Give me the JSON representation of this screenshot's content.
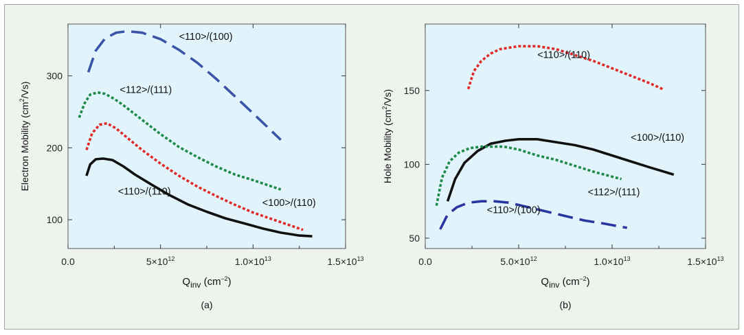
{
  "figure": {
    "background": "#eef3ee",
    "plot_background": "#e2f4fb"
  },
  "chart_data": [
    {
      "type": "line",
      "panel_label": "(a)",
      "xlabel": {
        "main": "Q",
        "sub": "inv",
        "unit_pre": " (cm",
        "unit_sup": "–2",
        "unit_post": ")"
      },
      "ylabel": {
        "main": "Electron Mobility (cm",
        "sup": "2",
        "post": "/Vs)"
      },
      "xlim": [
        0,
        15000000000000.0
      ],
      "ylim": [
        60,
        372
      ],
      "xticks": [
        {
          "value": 0,
          "label": "0.0"
        },
        {
          "value": 5000000000000.0,
          "label": "5×10",
          "exp": "12"
        },
        {
          "value": 10000000000000.0,
          "label": "1.0×10",
          "exp": "13"
        },
        {
          "value": 15000000000000.0,
          "label": "1.5×10",
          "exp": "13"
        }
      ],
      "yticks": [
        {
          "value": 100,
          "label": "100"
        },
        {
          "value": 200,
          "label": "200"
        },
        {
          "value": 300,
          "label": "300"
        }
      ],
      "series": [
        {
          "name": "<110>/(100)",
          "color": "#3a54a8",
          "dash": "long",
          "label_at": [
            6000000000000.0,
            350
          ],
          "x": [
            1100000000000.0,
            1500000000000.0,
            2000000000000.0,
            2600000000000.0,
            3200000000000.0,
            4000000000000.0,
            5000000000000.0,
            6000000000000.0,
            7000000000000.0,
            8000000000000.0,
            9000000000000.0,
            10000000000000.0,
            11500000000000.0
          ],
          "y": [
            305,
            335,
            352,
            360,
            362,
            360,
            351,
            336,
            318,
            296,
            272,
            248,
            211
          ]
        },
        {
          "name": "<112>/(111)",
          "color": "#1d8a4a",
          "dash": "short",
          "label_at": [
            2800000000000.0,
            276
          ],
          "x": [
            600000000000.0,
            900000000000.0,
            1200000000000.0,
            1600000000000.0,
            2000000000000.0,
            2500000000000.0,
            3000000000000.0,
            4000000000000.0,
            5000000000000.0,
            6000000000000.0,
            7000000000000.0,
            8000000000000.0,
            9000000000000.0,
            10000000000000.0,
            11500000000000.0
          ],
          "y": [
            242,
            262,
            274,
            277,
            275,
            268,
            259,
            239,
            219,
            201,
            187,
            174,
            163,
            155,
            142
          ]
        },
        {
          "name": "<100>/(110)",
          "color": "#e02a2a",
          "dash": "short",
          "label_at": [
            10500000000000.0,
            119
          ],
          "x": [
            1000000000000.0,
            1300000000000.0,
            1700000000000.0,
            2100000000000.0,
            2600000000000.0,
            3200000000000.0,
            4000000000000.0,
            5000000000000.0,
            6000000000000.0,
            7000000000000.0,
            8000000000000.0,
            9000000000000.0,
            10000000000000.0,
            11000000000000.0,
            12700000000000.0
          ],
          "y": [
            197,
            220,
            232,
            234,
            227,
            214,
            197,
            178,
            161,
            146,
            133,
            121,
            110,
            101,
            86
          ]
        },
        {
          "name": "<110>/(110)",
          "color": "#111111",
          "dash": "solid",
          "label_at": [
            2700000000000.0,
            135
          ],
          "x": [
            1000000000000.0,
            1200000000000.0,
            1500000000000.0,
            1900000000000.0,
            2400000000000.0,
            3000000000000.0,
            3600000000000.0,
            4500000000000.0,
            5500000000000.0,
            6500000000000.0,
            7500000000000.0,
            8500000000000.0,
            9500000000000.0,
            10500000000000.0,
            11500000000000.0,
            12500000000000.0,
            13200000000000.0
          ],
          "y": [
            161,
            177,
            184,
            185,
            183,
            174,
            163,
            149,
            134,
            121,
            111,
            102,
            95,
            88,
            82,
            78,
            77
          ]
        }
      ]
    },
    {
      "type": "line",
      "panel_label": "(b)",
      "xlabel": {
        "main": "Q",
        "sub": "inv",
        "unit_pre": " (cm",
        "unit_sup": "–2",
        "unit_post": ")"
      },
      "ylabel": {
        "main": "Hole Mobility (cm",
        "sup": "2",
        "post": "/Vs)"
      },
      "xlim": [
        0,
        15000000000000.0
      ],
      "ylim": [
        43,
        195
      ],
      "xticks": [
        {
          "value": 0,
          "label": "0.0"
        },
        {
          "value": 5000000000000.0,
          "label": "5.0×10",
          "exp": "12"
        },
        {
          "value": 10000000000000.0,
          "label": "1.0×10",
          "exp": "13"
        },
        {
          "value": 15000000000000.0,
          "label": "1.5×10",
          "exp": "13"
        }
      ],
      "yticks": [
        {
          "value": 50,
          "label": "50"
        },
        {
          "value": 100,
          "label": "100"
        },
        {
          "value": 150,
          "label": "150"
        }
      ],
      "series": [
        {
          "name": "<110>/(110)",
          "color": "#e02a2a",
          "dash": "short",
          "label_at": [
            6000000000000.0,
            172
          ],
          "x": [
            2300000000000.0,
            2600000000000.0,
            3000000000000.0,
            3500000000000.0,
            4000000000000.0,
            5000000000000.0,
            6000000000000.0,
            7000000000000.0,
            8000000000000.0,
            9000000000000.0,
            10000000000000.0,
            11000000000000.0,
            12000000000000.0,
            12700000000000.0
          ],
          "y": [
            151,
            163,
            170,
            175,
            178,
            180,
            180,
            178,
            174,
            170,
            165,
            160,
            155,
            151
          ]
        },
        {
          "name": "<100>/(110)",
          "color": "#111111",
          "dash": "solid",
          "label_at": [
            11000000000000.0,
            116
          ],
          "x": [
            1200000000000.0,
            1600000000000.0,
            2100000000000.0,
            2800000000000.0,
            3500000000000.0,
            4300000000000.0,
            5000000000000.0,
            6000000000000.0,
            7000000000000.0,
            8000000000000.0,
            9000000000000.0,
            10000000000000.0,
            11000000000000.0,
            12000000000000.0,
            13300000000000.0
          ],
          "y": [
            75,
            90,
            101,
            109,
            114,
            116,
            117,
            117,
            115,
            113,
            110,
            106,
            102,
            98,
            93
          ]
        },
        {
          "name": "<112>/(111)",
          "color": "#1d8a4a",
          "dash": "short",
          "label_at": [
            8700000000000.0,
            79
          ],
          "x": [
            600000000000.0,
            900000000000.0,
            1300000000000.0,
            1800000000000.0,
            2400000000000.0,
            3000000000000.0,
            3600000000000.0,
            4200000000000.0,
            5000000000000.0,
            6000000000000.0,
            7000000000000.0,
            8000000000000.0,
            9000000000000.0,
            10500000000000.0
          ],
          "y": [
            72,
            91,
            102,
            108,
            111,
            112,
            112,
            112,
            110,
            106,
            103,
            99,
            95,
            90
          ]
        },
        {
          "name": "<110>/(100)",
          "color": "#2a36a0",
          "dash": "long",
          "label_at": [
            3300000000000.0,
            67
          ],
          "x": [
            800000000000.0,
            1200000000000.0,
            1700000000000.0,
            2300000000000.0,
            3000000000000.0,
            3700000000000.0,
            4500000000000.0,
            5500000000000.0,
            6500000000000.0,
            7500000000000.0,
            8500000000000.0,
            9500000000000.0,
            10800000000000.0
          ],
          "y": [
            56,
            66,
            71,
            74,
            75,
            75,
            74,
            71,
            68,
            65,
            62,
            60,
            57
          ]
        }
      ]
    }
  ]
}
